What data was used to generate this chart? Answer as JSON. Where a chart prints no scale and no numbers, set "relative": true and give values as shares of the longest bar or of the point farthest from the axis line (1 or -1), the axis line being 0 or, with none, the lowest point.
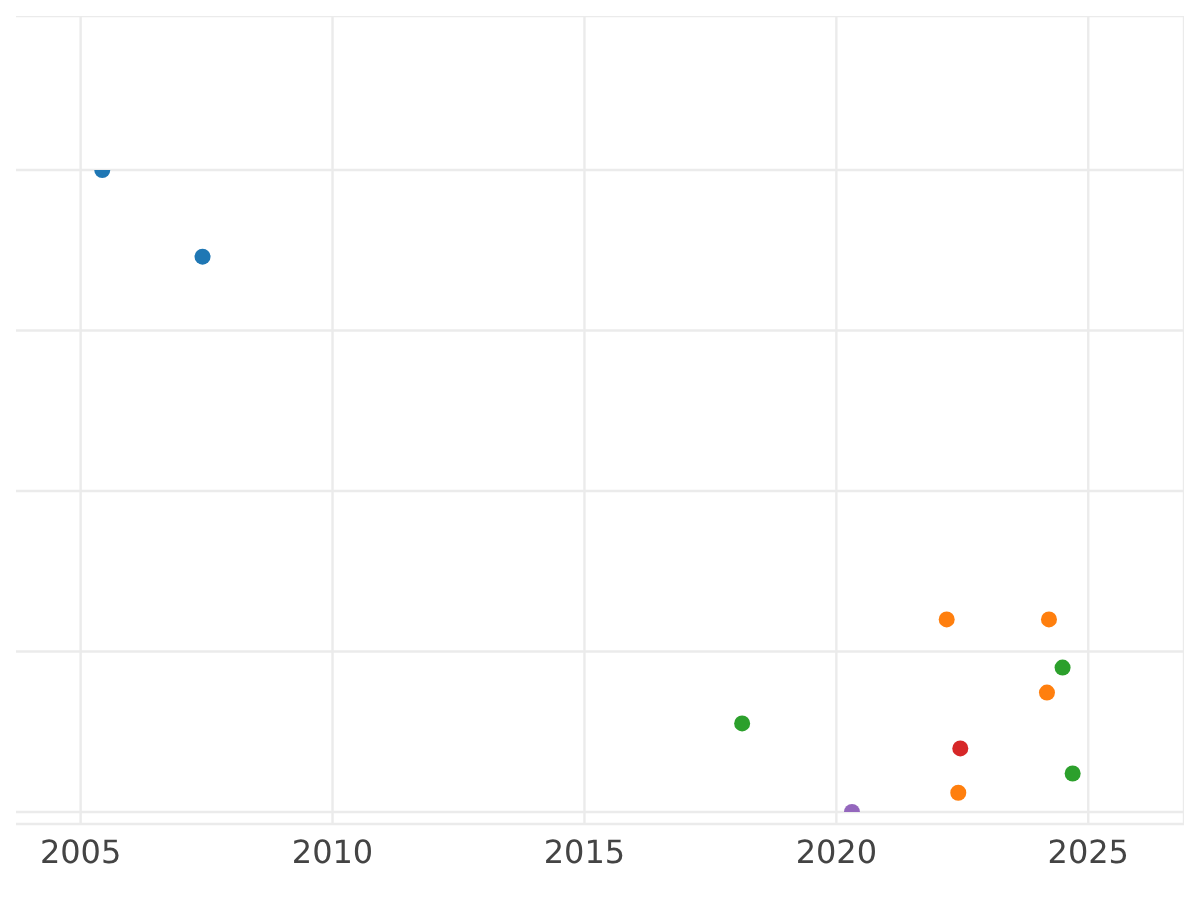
{
  "chart_data": {
    "type": "scatter",
    "relative": true,
    "xlim": [
      2003.4,
      2026.9
    ],
    "xticks": [
      2005,
      2010,
      2015,
      2020,
      2025
    ],
    "grid": true,
    "marker": "circle",
    "series": [
      {
        "color": "#1f77b4",
        "x": [
          2005.43,
          2007.42
        ],
        "values": [
          1,
          0.865
        ]
      },
      {
        "color": "#ff7f0e",
        "x": [
          2022.19,
          2024.22,
          2024.18,
          2022.42
        ],
        "values": [
          0.3,
          0.3,
          0.186,
          0.03
        ]
      },
      {
        "color": "#2ca02c",
        "x": [
          2018.13,
          2024.49,
          2024.69
        ],
        "values": [
          0.138,
          0.225,
          0.06
        ]
      },
      {
        "color": "#d62728",
        "x": [
          2022.46
        ],
        "values": [
          0.099
        ]
      },
      {
        "color": "#9467bd",
        "x": [
          2020.31
        ],
        "values": [
          0
        ]
      }
    ]
  }
}
